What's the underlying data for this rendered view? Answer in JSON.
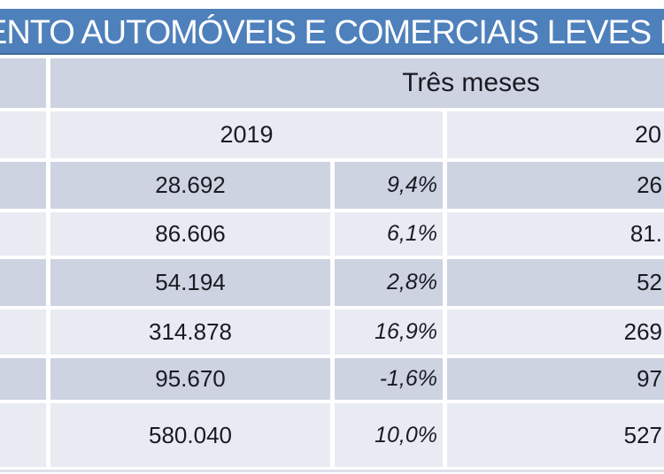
{
  "slide": {
    "title_visible": "MENTO AUTOMÓVEIS E COMERCIAIS LEVES PO",
    "title_bg": "#4e80bb",
    "title_color": "#ffffff"
  },
  "table": {
    "group_header": "Três meses",
    "col_2019_header": "2019",
    "col_2020_header_visible": "20",
    "rows": [
      {
        "value_2019": "28.692",
        "variation_2019": "9,4%",
        "value_2020_visible": "26"
      },
      {
        "value_2019": "86.606",
        "variation_2019": "6,1%",
        "value_2020_visible": "81."
      },
      {
        "value_2019": "54.194",
        "variation_2019": "2,8%",
        "value_2020_visible": "52"
      },
      {
        "value_2019": "314.878",
        "variation_2019": "16,9%",
        "value_2020_visible": "269"
      },
      {
        "value_2019": "95.670",
        "variation_2019": "-1,6%",
        "value_2020_visible": "97"
      },
      {
        "value_2019": "580.040",
        "variation_2019": "10,0%",
        "value_2020_visible": "527"
      }
    ],
    "colors": {
      "band_dark": "#cdd3e1",
      "band_light": "#e9ebf3",
      "text": "#1a1a22",
      "gridline": "#ffffff",
      "title_bar": "#4e80bb"
    }
  }
}
